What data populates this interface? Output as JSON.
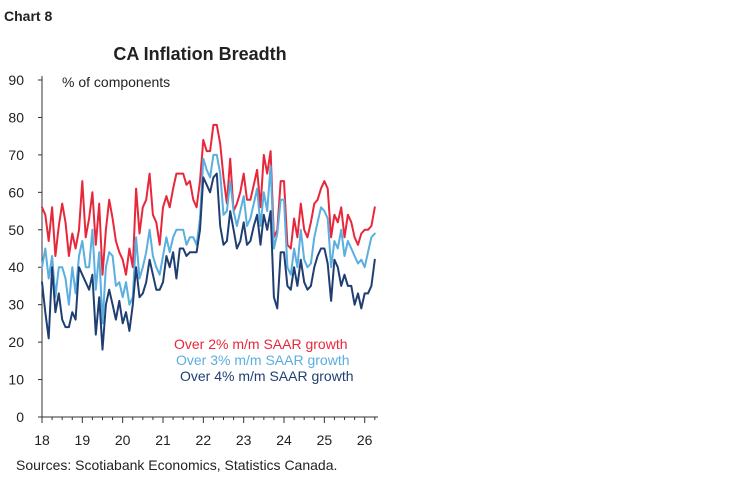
{
  "header": {
    "chart_label": "Chart 8"
  },
  "footer": {
    "source": "Sources: Scotiabank Economics, Statistics Canada."
  },
  "colors": {
    "over2": "#e8273b",
    "over3": "#5aaee0",
    "over4": "#1f3f73",
    "axis": "#333333"
  },
  "chart_data": {
    "type": "line",
    "title": "CA Inflation Breadth",
    "ylabel": "% of components",
    "ylim": [
      0,
      90
    ],
    "yticks": [
      0,
      10,
      20,
      30,
      40,
      50,
      60,
      70,
      80,
      90
    ],
    "xlim": [
      2018,
      2026.33
    ],
    "xticks": [
      "18",
      "19",
      "20",
      "21",
      "22",
      "23",
      "24",
      "25",
      "26"
    ],
    "grid": false,
    "legend_position": "lower-left inside plot",
    "x": [
      2018.0,
      2018.083,
      2018.167,
      2018.25,
      2018.333,
      2018.417,
      2018.5,
      2018.583,
      2018.667,
      2018.75,
      2018.833,
      2018.917,
      2019.0,
      2019.083,
      2019.167,
      2019.25,
      2019.333,
      2019.417,
      2019.5,
      2019.583,
      2019.667,
      2019.75,
      2019.833,
      2019.917,
      2020.0,
      2020.083,
      2020.167,
      2020.25,
      2020.333,
      2020.417,
      2020.5,
      2020.583,
      2020.667,
      2020.75,
      2020.833,
      2020.917,
      2021.0,
      2021.083,
      2021.167,
      2021.25,
      2021.333,
      2021.417,
      2021.5,
      2021.583,
      2021.667,
      2021.75,
      2021.833,
      2021.917,
      2022.0,
      2022.083,
      2022.167,
      2022.25,
      2022.333,
      2022.417,
      2022.5,
      2022.583,
      2022.667,
      2022.75,
      2022.833,
      2022.917,
      2023.0,
      2023.083,
      2023.167,
      2023.25,
      2023.333,
      2023.417,
      2023.5,
      2023.583,
      2023.667,
      2023.75,
      2023.833,
      2023.917,
      2024.0,
      2024.083,
      2024.167,
      2024.25,
      2024.333,
      2024.417,
      2024.5,
      2024.583,
      2024.667,
      2024.75,
      2024.833,
      2024.917,
      2025.0,
      2025.083,
      2025.167,
      2025.25,
      2025.333,
      2025.417,
      2025.5,
      2025.583,
      2025.667,
      2025.75,
      2025.833,
      2025.917,
      2026.0,
      2026.083,
      2026.167,
      2026.25
    ],
    "series": [
      {
        "name": "Over 2% m/m SAAR growth",
        "color": "#e8273b",
        "values": [
          56,
          54,
          47,
          56,
          43,
          51,
          57,
          52,
          43,
          49,
          45,
          50,
          63,
          48,
          53,
          60,
          46,
          57,
          38,
          50,
          58,
          53,
          47,
          44,
          42,
          38,
          45,
          40,
          61,
          49,
          56,
          58,
          65,
          54,
          52,
          46,
          56,
          59,
          56,
          61,
          65,
          65,
          65,
          62,
          63,
          58,
          56,
          63,
          74,
          71,
          71,
          78,
          78,
          73,
          64,
          57,
          69,
          55,
          57,
          60,
          65,
          58,
          58,
          62,
          66,
          56,
          70,
          65,
          71,
          48,
          50,
          63,
          63,
          46,
          45,
          53,
          48,
          57,
          50,
          48,
          52,
          57,
          58,
          61,
          63,
          61,
          48,
          54,
          52,
          56,
          48,
          54,
          52,
          48,
          46,
          49,
          50,
          50,
          51,
          56
        ]
      },
      {
        "name": "Over 3% m/m SAAR growth",
        "color": "#5aaee0",
        "values": [
          40,
          45,
          37,
          43,
          32,
          40,
          40,
          37,
          30,
          40,
          33,
          43,
          47,
          40,
          40,
          50,
          34,
          44,
          25,
          40,
          44,
          43,
          35,
          36,
          32,
          36,
          30,
          32,
          48,
          37,
          40,
          44,
          50,
          43,
          40,
          38,
          43,
          48,
          44,
          48,
          50,
          50,
          50,
          46,
          48,
          48,
          46,
          53,
          69,
          66,
          64,
          70,
          70,
          65,
          54,
          55,
          63,
          55,
          51,
          55,
          59,
          51,
          53,
          57,
          61,
          51,
          60,
          55,
          67,
          45,
          49,
          58,
          58,
          40,
          38,
          45,
          40,
          50,
          42,
          40,
          41,
          48,
          52,
          56,
          55,
          53,
          40,
          47,
          45,
          50,
          43,
          47,
          45,
          43,
          41,
          42,
          40,
          44,
          48,
          49
        ]
      },
      {
        "name": "Over 4% m/m SAAR growth",
        "color": "#1f3f73",
        "values": [
          36,
          28,
          21,
          40,
          28,
          33,
          26,
          24,
          24,
          28,
          26,
          40,
          38,
          36,
          34,
          38,
          22,
          32,
          18,
          30,
          34,
          30,
          26,
          31,
          25,
          28,
          23,
          30,
          40,
          32,
          33,
          36,
          42,
          38,
          34,
          34,
          36,
          43,
          40,
          44,
          37,
          45,
          45,
          43,
          44,
          44,
          44,
          50,
          64,
          62,
          60,
          64,
          65,
          51,
          46,
          47,
          55,
          50,
          45,
          47,
          52,
          46,
          47,
          51,
          54,
          46,
          54,
          50,
          55,
          32,
          29,
          44,
          44,
          35,
          34,
          40,
          35,
          42,
          36,
          34,
          35,
          40,
          43,
          45,
          45,
          41,
          31,
          42,
          40,
          35,
          38,
          35,
          35,
          30,
          33,
          29,
          33,
          33,
          35,
          42
        ]
      }
    ]
  }
}
